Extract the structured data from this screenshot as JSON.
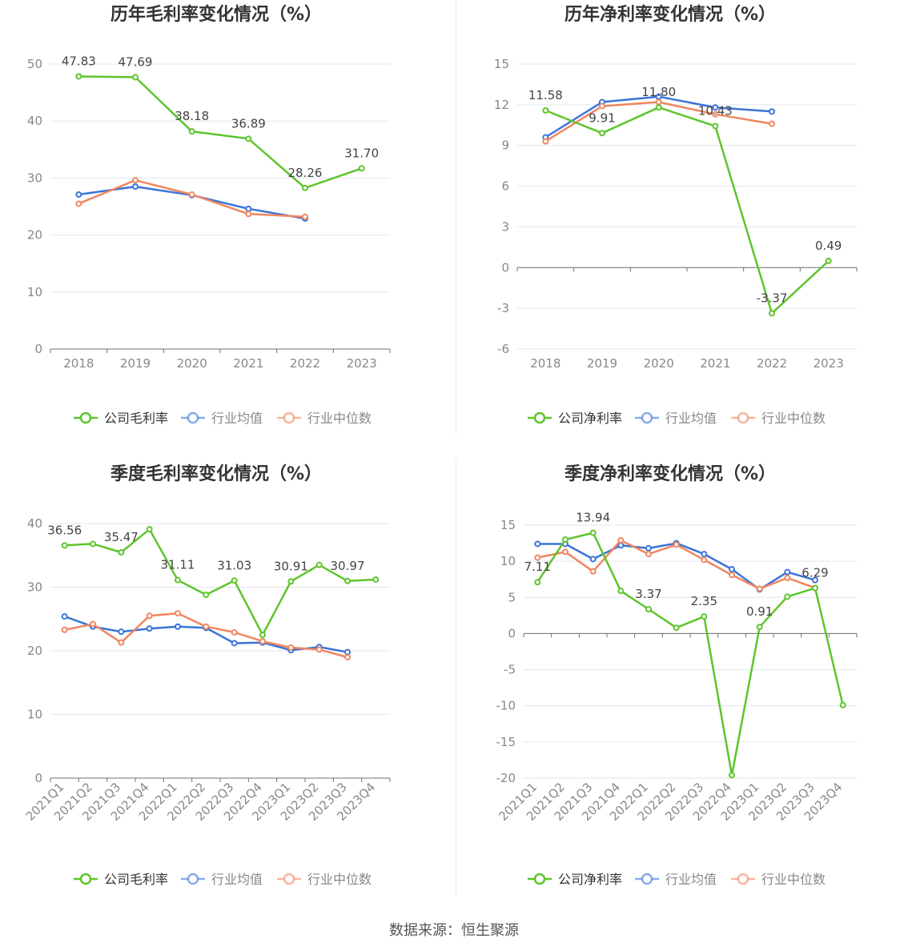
{
  "source_text": "数据来源：恒生聚源",
  "colors": {
    "company": "#5ec52c",
    "avg": "#3b73d8",
    "median": "#f08660"
  },
  "chart_data": [
    {
      "type": "line",
      "title": "历年毛利率变化情况（%）",
      "categories": [
        "2018",
        "2019",
        "2020",
        "2021",
        "2022",
        "2023"
      ],
      "ylim": [
        0,
        50
      ],
      "yticks": [
        0,
        10,
        20,
        30,
        40,
        50
      ],
      "grid": true,
      "legend_position": "bottom",
      "series": [
        {
          "name": "公司毛利率",
          "values": [
            47.83,
            47.69,
            38.18,
            36.89,
            28.26,
            31.7
          ],
          "labels": [
            "47.83",
            "47.69",
            "38.18",
            "36.89",
            "28.26",
            "31.70"
          ]
        },
        {
          "name": "行业均值",
          "values": [
            27.1,
            28.5,
            27.0,
            24.6,
            22.9,
            null
          ]
        },
        {
          "name": "行业中位数",
          "values": [
            25.5,
            29.6,
            27.1,
            23.7,
            23.2,
            null
          ]
        }
      ]
    },
    {
      "type": "line",
      "title": "历年净利率变化情况（%）",
      "categories": [
        "2018",
        "2019",
        "2020",
        "2021",
        "2022",
        "2023"
      ],
      "ylim": [
        -6,
        15
      ],
      "yticks": [
        -6,
        -3,
        0,
        3,
        6,
        9,
        12,
        15
      ],
      "grid": true,
      "legend_position": "bottom",
      "series": [
        {
          "name": "公司净利率",
          "values": [
            11.58,
            9.91,
            11.8,
            10.43,
            -3.37,
            0.49
          ],
          "labels": [
            "11.58",
            "9.91",
            "11.80",
            "10.43",
            "-3.37",
            "0.49"
          ]
        },
        {
          "name": "行业均值",
          "values": [
            9.6,
            12.2,
            12.6,
            11.8,
            11.5,
            null
          ]
        },
        {
          "name": "行业中位数",
          "values": [
            9.3,
            11.9,
            12.2,
            11.3,
            10.6,
            null
          ]
        }
      ]
    },
    {
      "type": "line",
      "title": "季度毛利率变化情况（%）",
      "categories": [
        "2021Q1",
        "2021Q2",
        "2021Q3",
        "2021Q4",
        "2022Q1",
        "2022Q2",
        "2022Q3",
        "2022Q4",
        "2023Q1",
        "2023Q2",
        "2023Q3",
        "2023Q4"
      ],
      "ylim": [
        0,
        40
      ],
      "yticks": [
        0,
        10,
        20,
        30,
        40
      ],
      "grid": true,
      "legend_position": "bottom",
      "series": [
        {
          "name": "公司毛利率",
          "values": [
            36.56,
            36.8,
            35.47,
            39.1,
            31.11,
            28.8,
            31.03,
            22.5,
            30.91,
            33.5,
            30.97,
            31.2
          ],
          "labels": [
            "36.56",
            "",
            "35.47",
            "",
            "31.11",
            "",
            "31.03",
            "",
            "30.91",
            "",
            "30.97",
            ""
          ]
        },
        {
          "name": "行业均值",
          "values": [
            25.4,
            23.8,
            23.0,
            23.5,
            23.8,
            23.6,
            21.2,
            21.3,
            20.1,
            20.6,
            19.8,
            null
          ]
        },
        {
          "name": "行业中位数",
          "values": [
            23.3,
            24.2,
            21.3,
            25.5,
            25.9,
            23.8,
            22.9,
            21.5,
            20.5,
            20.2,
            19.0,
            null
          ]
        }
      ]
    },
    {
      "type": "line",
      "title": "季度净利率变化情况（%）",
      "categories": [
        "2021Q1",
        "2021Q2",
        "2021Q3",
        "2021Q4",
        "2022Q1",
        "2022Q2",
        "2022Q3",
        "2022Q4",
        "2023Q1",
        "2023Q2",
        "2023Q3",
        "2023Q4"
      ],
      "ylim": [
        -20,
        15
      ],
      "yticks": [
        -20,
        -15,
        -10,
        -5,
        0,
        5,
        10,
        15
      ],
      "grid": true,
      "legend_position": "bottom",
      "series": [
        {
          "name": "公司净利率",
          "values": [
            7.11,
            13.0,
            13.94,
            5.9,
            3.37,
            0.8,
            2.35,
            -19.6,
            0.91,
            5.1,
            6.29,
            -9.9
          ],
          "labels": [
            "7.11",
            "",
            "13.94",
            "",
            "3.37",
            "",
            "2.35",
            "",
            "0.91",
            "",
            "6.29",
            ""
          ]
        },
        {
          "name": "行业均值",
          "values": [
            12.4,
            12.4,
            10.3,
            12.2,
            11.8,
            12.5,
            11.0,
            8.9,
            6.1,
            8.5,
            7.4,
            null
          ]
        },
        {
          "name": "行业中位数",
          "values": [
            10.5,
            11.3,
            8.6,
            12.9,
            11.0,
            12.3,
            10.2,
            8.1,
            6.2,
            7.7,
            6.3,
            null
          ]
        }
      ]
    }
  ]
}
